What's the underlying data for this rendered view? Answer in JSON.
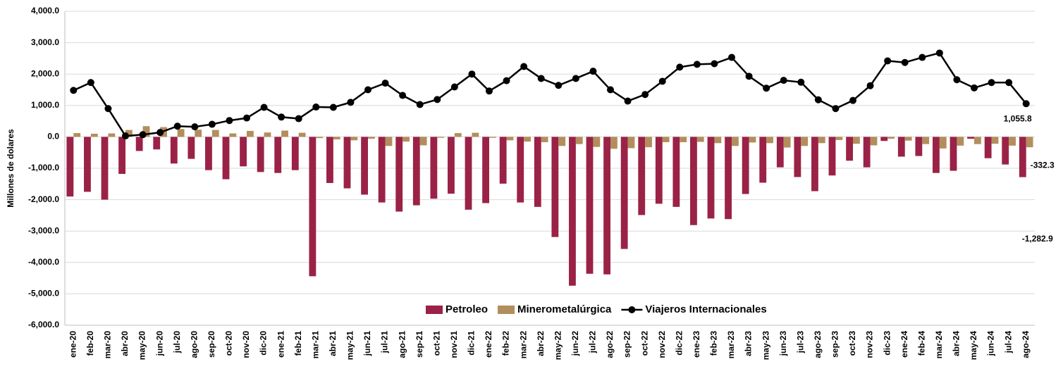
{
  "chart_data": {
    "type": "bar",
    "y_label": "Millones de dolares",
    "categories": [
      "ene-20",
      "feb-20",
      "mar-20",
      "abr-20",
      "may-20",
      "jun-20",
      "jul-20",
      "ago-20",
      "sep-20",
      "oct-20",
      "nov-20",
      "dic-20",
      "ene-21",
      "feb-21",
      "mar-21",
      "abr-21",
      "may-21",
      "jun-21",
      "jul-21",
      "ago-21",
      "sep-21",
      "oct-21",
      "nov-21",
      "dic-21",
      "ene-22",
      "feb-22",
      "mar-22",
      "abr-22",
      "may-22",
      "jun-22",
      "jul-22",
      "ago-22",
      "sep-22",
      "oct-22",
      "nov-22",
      "dic-22",
      "ene-23",
      "feb-23",
      "mar-23",
      "abr-23",
      "may-23",
      "jun-23",
      "jul-23",
      "ago-23",
      "sep-23",
      "oct-23",
      "nov-23",
      "dic-23",
      "ene-24",
      "feb-24",
      "mar-24",
      "abr-24",
      "may-24",
      "jun-24",
      "jul-24",
      "ago-24"
    ],
    "series": [
      {
        "name": "Petroleo",
        "type": "bar",
        "color": "#9b2247",
        "values": [
          -1900,
          -1750,
          -2000,
          -1180,
          -450,
          -400,
          -850,
          -700,
          -1060,
          -1350,
          -940,
          -1120,
          -1150,
          -1060,
          -4440,
          -1470,
          -1640,
          -1840,
          -2090,
          -2380,
          -2180,
          -1970,
          -1810,
          -2320,
          -2110,
          -1490,
          -2090,
          -2230,
          -3190,
          -4740,
          -4360,
          -4380,
          -3570,
          -2490,
          -2130,
          -2230,
          -2810,
          -2600,
          -2620,
          -1820,
          -1460,
          -970,
          -1280,
          -1730,
          -1230,
          -760,
          -970,
          -130,
          -630,
          -610,
          -1150,
          -1080,
          -60,
          -680,
          -880,
          -1282.9
        ],
        "value_labels": [
          null,
          null,
          null,
          null,
          null,
          null,
          null,
          null,
          null,
          null,
          null,
          null,
          null,
          null,
          null,
          null,
          null,
          null,
          null,
          null,
          null,
          null,
          null,
          null,
          null,
          null,
          null,
          null,
          null,
          null,
          null,
          null,
          null,
          null,
          null,
          null,
          null,
          null,
          null,
          null,
          null,
          null,
          null,
          null,
          null,
          null,
          null,
          null,
          null,
          null,
          null,
          null,
          null,
          null,
          null,
          "-1,282.9"
        ]
      },
      {
        "name": "Minerometalúrgica",
        "type": "bar",
        "color": "#b38e5d",
        "values": [
          120,
          100,
          110,
          220,
          340,
          310,
          250,
          230,
          220,
          110,
          190,
          140,
          200,
          130,
          -40,
          -80,
          -110,
          -60,
          -290,
          -150,
          -270,
          -30,
          120,
          130,
          -30,
          -110,
          -150,
          -170,
          -290,
          -230,
          -320,
          -380,
          -360,
          -330,
          -170,
          -170,
          -160,
          -200,
          -290,
          -180,
          -200,
          -340,
          -290,
          -200,
          -100,
          -220,
          -270,
          -60,
          -120,
          -230,
          -370,
          -280,
          -230,
          -220,
          -280,
          -332.3
        ],
        "value_labels": [
          null,
          null,
          null,
          null,
          null,
          null,
          null,
          null,
          null,
          null,
          null,
          null,
          null,
          null,
          null,
          null,
          null,
          null,
          null,
          null,
          null,
          null,
          null,
          null,
          null,
          null,
          null,
          null,
          null,
          null,
          null,
          null,
          null,
          null,
          null,
          null,
          null,
          null,
          null,
          null,
          null,
          null,
          null,
          null,
          null,
          null,
          null,
          null,
          null,
          null,
          null,
          null,
          null,
          null,
          null,
          "-332.3"
        ]
      },
      {
        "name": "Viajeros Internacionales",
        "type": "line",
        "color": "#000000",
        "values": [
          1480,
          1730,
          900,
          30,
          70,
          140,
          340,
          320,
          400,
          520,
          600,
          940,
          630,
          580,
          950,
          940,
          1100,
          1500,
          1710,
          1320,
          1030,
          1190,
          1590,
          2000,
          1460,
          1790,
          2240,
          1860,
          1640,
          1860,
          2090,
          1500,
          1140,
          1350,
          1770,
          2220,
          2310,
          2330,
          2530,
          1930,
          1550,
          1800,
          1740,
          1180,
          900,
          1160,
          1630,
          2420,
          2370,
          2530,
          2670,
          1820,
          1560,
          1730,
          1730,
          1055.8
        ],
        "value_labels": [
          null,
          null,
          null,
          null,
          null,
          null,
          null,
          null,
          null,
          null,
          null,
          null,
          null,
          null,
          null,
          null,
          null,
          null,
          null,
          null,
          null,
          null,
          null,
          null,
          null,
          null,
          null,
          null,
          null,
          null,
          null,
          null,
          null,
          null,
          null,
          null,
          null,
          null,
          null,
          null,
          null,
          null,
          null,
          null,
          null,
          null,
          null,
          null,
          null,
          null,
          null,
          null,
          null,
          null,
          null,
          "1,055.8"
        ]
      }
    ],
    "ylim": [
      -6000,
      4000
    ],
    "yticks": [
      {
        "value": 4000,
        "label": "4,000.0"
      },
      {
        "value": 3000,
        "label": "3,000.0"
      },
      {
        "value": 2000,
        "label": "2,000.0"
      },
      {
        "value": 1000,
        "label": "1,000.0"
      },
      {
        "value": 0,
        "label": "0.0"
      },
      {
        "value": -1000,
        "label": "-1,000.0"
      },
      {
        "value": -2000,
        "label": "-2,000.0"
      },
      {
        "value": -3000,
        "label": "-3,000.0"
      },
      {
        "value": -4000,
        "label": "-4,000.0"
      },
      {
        "value": -5000,
        "label": "-5,000.0"
      },
      {
        "value": -6000,
        "label": "-6,000.0"
      }
    ],
    "grid": true,
    "legend": "bottom"
  }
}
